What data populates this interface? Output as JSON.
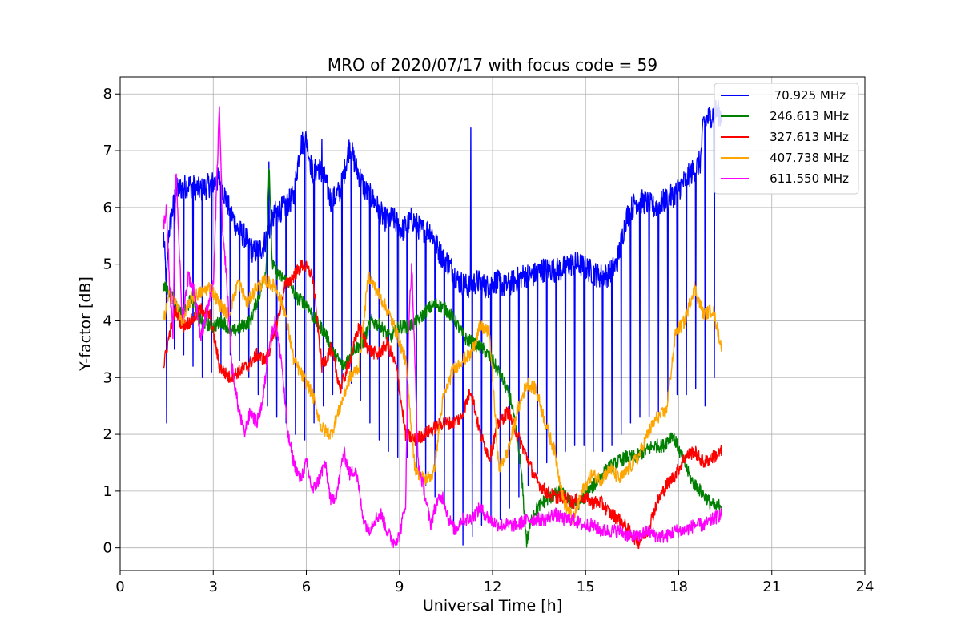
{
  "chart_data": {
    "type": "line",
    "title": "MRO of 2020/07/17 with focus code = 59",
    "xlabel": "Universal Time [h]",
    "ylabel": "Y-factor [dB]",
    "xlim": [
      0,
      24
    ],
    "ylim": [
      -0.4,
      8.3
    ],
    "xticks": [
      0,
      3,
      6,
      9,
      12,
      15,
      18,
      21,
      24
    ],
    "yticks": [
      0,
      1,
      2,
      3,
      4,
      5,
      6,
      7,
      8
    ],
    "grid": true,
    "legend_position": "top-right",
    "series": [
      {
        "name": "70.925 MHz",
        "color": "#0000ff",
        "x": [
          1.4,
          1.5,
          1.55,
          1.8,
          2.2,
          2.6,
          2.9,
          3.2,
          3.5,
          3.8,
          4.0,
          4.3,
          4.6,
          4.8,
          5.0,
          5.3,
          5.6,
          5.8,
          6.0,
          6.2,
          6.4,
          6.6,
          6.8,
          7.1,
          7.4,
          7.6,
          7.9,
          8.2,
          8.5,
          8.8,
          9.1,
          9.4,
          9.7,
          10.0,
          10.3,
          10.6,
          10.9,
          11.2,
          11.5,
          11.8,
          12.1,
          12.4,
          12.7,
          13.0,
          13.3,
          13.6,
          13.9,
          14.2,
          14.5,
          14.8,
          15.1,
          15.4,
          15.7,
          16.0,
          16.3,
          16.6,
          16.9,
          17.2,
          17.5,
          17.8,
          18.1,
          18.4,
          18.7,
          18.8,
          19.0,
          19.2,
          19.4
        ],
        "y": [
          5.5,
          4.6,
          5.5,
          6.3,
          6.4,
          6.3,
          6.4,
          6.5,
          6.0,
          5.6,
          5.5,
          5.2,
          5.3,
          5.6,
          5.9,
          6.0,
          6.2,
          7.1,
          7.2,
          6.6,
          6.7,
          6.5,
          6.1,
          6.3,
          7.1,
          6.7,
          6.3,
          6.1,
          5.8,
          5.8,
          5.6,
          5.8,
          5.6,
          5.6,
          5.2,
          5.0,
          4.7,
          4.6,
          4.7,
          4.6,
          4.7,
          4.6,
          4.7,
          4.8,
          4.8,
          4.9,
          4.9,
          4.9,
          5.0,
          5.0,
          4.9,
          4.8,
          4.8,
          5.0,
          5.8,
          6.1,
          6.1,
          6.0,
          6.1,
          6.2,
          6.4,
          6.6,
          6.8,
          7.5,
          7.6,
          7.7,
          7.6
        ],
        "dips": [
          [
            1.5,
            2.2
          ],
          [
            1.75,
            3.5
          ],
          [
            2.05,
            3.4
          ],
          [
            2.35,
            3.2
          ],
          [
            2.65,
            3.0
          ],
          [
            2.95,
            3.1
          ],
          [
            3.25,
            3.2
          ],
          [
            3.55,
            3.4
          ],
          [
            3.85,
            3.3
          ],
          [
            4.15,
            3.0
          ],
          [
            4.45,
            2.7
          ],
          [
            4.75,
            2.5
          ],
          [
            5.05,
            2.3
          ],
          [
            5.35,
            2.2
          ],
          [
            5.65,
            2.0
          ],
          [
            5.95,
            1.9
          ],
          [
            6.25,
            2.2
          ],
          [
            6.55,
            2.5
          ],
          [
            6.85,
            2.7
          ],
          [
            7.15,
            2.8
          ],
          [
            7.45,
            2.9
          ],
          [
            7.75,
            2.6
          ],
          [
            8.05,
            2.2
          ],
          [
            8.35,
            1.9
          ],
          [
            8.65,
            1.7
          ],
          [
            8.95,
            1.6
          ],
          [
            9.25,
            1.6
          ],
          [
            9.55,
            1.4
          ],
          [
            9.85,
            1.1
          ],
          [
            10.15,
            0.9
          ],
          [
            10.45,
            0.7
          ],
          [
            10.75,
            0.4
          ],
          [
            11.05,
            0.05
          ],
          [
            11.35,
            0.2
          ],
          [
            11.65,
            0.4
          ],
          [
            11.95,
            0.5
          ],
          [
            12.25,
            0.5
          ],
          [
            12.55,
            0.7
          ],
          [
            12.85,
            0.9
          ],
          [
            13.15,
            1.1
          ],
          [
            13.45,
            1.3
          ],
          [
            13.75,
            1.5
          ],
          [
            14.05,
            1.6
          ],
          [
            14.35,
            1.7
          ],
          [
            14.65,
            1.8
          ],
          [
            14.95,
            1.8
          ],
          [
            15.25,
            1.7
          ],
          [
            15.55,
            1.7
          ],
          [
            15.85,
            1.8
          ],
          [
            16.15,
            2.0
          ],
          [
            16.45,
            2.2
          ],
          [
            16.75,
            2.3
          ],
          [
            17.05,
            2.3
          ],
          [
            17.35,
            2.4
          ],
          [
            17.65,
            2.6
          ],
          [
            17.95,
            2.7
          ],
          [
            18.25,
            2.7
          ],
          [
            18.55,
            2.8
          ],
          [
            18.85,
            2.5
          ],
          [
            19.15,
            3.0
          ]
        ],
        "spikes": [
          [
            4.8,
            6.8
          ],
          [
            11.3,
            7.4
          ],
          [
            6.5,
            7.2
          ]
        ]
      },
      {
        "name": "246.613 MHz",
        "color": "#008000",
        "x": [
          1.4,
          1.6,
          1.8,
          2.0,
          2.3,
          2.6,
          3.0,
          3.3,
          3.6,
          3.9,
          4.2,
          4.5,
          4.7,
          4.8,
          4.9,
          5.1,
          5.4,
          5.7,
          6.0,
          6.3,
          6.6,
          6.9,
          7.2,
          7.5,
          7.8,
          8.1,
          8.4,
          8.7,
          9.0,
          9.3,
          9.6,
          9.9,
          10.2,
          10.5,
          10.8,
          11.1,
          11.4,
          11.7,
          12.0,
          12.3,
          12.6,
          12.9,
          13.1,
          13.3,
          13.6,
          13.9,
          14.2,
          14.5,
          14.8,
          15.1,
          15.4,
          15.7,
          16.0,
          16.3,
          16.6,
          16.9,
          17.2,
          17.5,
          17.8,
          18.1,
          18.4,
          18.7,
          19.0,
          19.2,
          19.4
        ],
        "y": [
          4.6,
          4.5,
          4.3,
          4.1,
          4.4,
          4.0,
          3.9,
          4.0,
          3.8,
          3.9,
          4.0,
          4.5,
          4.9,
          6.8,
          5.0,
          4.8,
          4.7,
          4.4,
          4.3,
          4.0,
          3.8,
          3.4,
          3.2,
          3.5,
          3.6,
          4.0,
          3.9,
          3.7,
          3.9,
          3.9,
          4.0,
          4.2,
          4.3,
          4.2,
          4.0,
          3.7,
          3.6,
          3.5,
          3.3,
          3.0,
          2.6,
          1.5,
          0.1,
          0.6,
          0.8,
          0.9,
          1.0,
          0.8,
          0.8,
          1.0,
          1.2,
          1.4,
          1.5,
          1.6,
          1.6,
          1.7,
          1.8,
          1.8,
          2.0,
          1.6,
          1.2,
          1.0,
          0.8,
          0.7,
          0.8
        ]
      },
      {
        "name": "327.613 MHz",
        "color": "#ff0000",
        "x": [
          1.4,
          1.6,
          1.8,
          2.0,
          2.3,
          2.6,
          2.9,
          3.2,
          3.5,
          3.8,
          4.1,
          4.4,
          4.7,
          5.0,
          5.3,
          5.6,
          5.9,
          6.2,
          6.5,
          6.8,
          7.1,
          7.4,
          7.7,
          8.0,
          8.3,
          8.6,
          8.9,
          9.2,
          9.5,
          9.8,
          10.1,
          10.4,
          10.7,
          11.0,
          11.3,
          11.6,
          11.9,
          12.2,
          12.5,
          12.8,
          13.1,
          13.4,
          13.7,
          14.0,
          14.3,
          14.6,
          14.9,
          15.2,
          15.5,
          15.8,
          16.1,
          16.4,
          16.7,
          17.0,
          17.3,
          17.6,
          17.9,
          18.2,
          18.5,
          18.8,
          19.1,
          19.4
        ],
        "y": [
          3.2,
          3.8,
          4.2,
          3.9,
          4.0,
          4.2,
          4.1,
          3.2,
          3.0,
          3.1,
          3.2,
          3.4,
          3.3,
          3.8,
          4.6,
          4.8,
          5.0,
          4.8,
          3.2,
          3.5,
          2.8,
          3.3,
          3.9,
          3.5,
          3.4,
          3.6,
          3.2,
          2.0,
          1.9,
          2.0,
          2.1,
          2.2,
          2.2,
          2.3,
          2.8,
          2.0,
          1.6,
          2.2,
          2.4,
          2.0,
          1.6,
          1.2,
          1.0,
          0.9,
          0.9,
          0.8,
          0.9,
          0.8,
          0.8,
          0.6,
          0.5,
          0.3,
          0.1,
          0.3,
          0.8,
          1.1,
          1.3,
          1.6,
          1.7,
          1.5,
          1.6,
          1.7
        ]
      },
      {
        "name": "407.738 MHz",
        "color": "#ffa500",
        "x": [
          1.4,
          1.6,
          1.8,
          2.0,
          2.3,
          2.6,
          2.9,
          3.2,
          3.5,
          3.8,
          4.1,
          4.4,
          4.7,
          5.0,
          5.3,
          5.6,
          5.9,
          6.2,
          6.5,
          6.8,
          7.1,
          7.4,
          7.7,
          8.0,
          8.3,
          8.6,
          8.9,
          9.2,
          9.5,
          9.8,
          10.1,
          10.4,
          10.7,
          11.0,
          11.3,
          11.6,
          11.9,
          12.2,
          12.5,
          12.8,
          13.1,
          13.4,
          13.7,
          14.0,
          14.3,
          14.6,
          14.9,
          15.2,
          15.5,
          15.8,
          16.1,
          16.4,
          16.7,
          17.0,
          17.3,
          17.6,
          17.9,
          18.2,
          18.5,
          18.8,
          19.1,
          19.4
        ],
        "y": [
          4.0,
          4.5,
          4.3,
          4.0,
          4.4,
          4.5,
          4.6,
          4.3,
          4.1,
          4.7,
          4.3,
          4.6,
          4.7,
          4.6,
          4.2,
          3.3,
          3.0,
          2.7,
          2.1,
          2.0,
          2.5,
          3.0,
          3.2,
          4.8,
          4.5,
          4.2,
          3.8,
          3.3,
          1.4,
          1.2,
          1.3,
          2.6,
          3.1,
          3.3,
          3.4,
          3.9,
          3.8,
          1.4,
          1.7,
          2.4,
          2.9,
          2.8,
          2.2,
          1.7,
          0.8,
          0.5,
          1.0,
          1.3,
          1.2,
          1.4,
          1.2,
          1.4,
          1.6,
          2.0,
          2.3,
          2.4,
          3.8,
          4.0,
          4.6,
          4.1,
          4.2,
          3.5
        ]
      },
      {
        "name": "611.550 MHz",
        "color": "#ff00ff",
        "x": [
          1.4,
          1.5,
          1.6,
          1.7,
          1.8,
          2.0,
          2.2,
          2.4,
          2.6,
          2.8,
          3.0,
          3.2,
          3.3,
          3.4,
          3.6,
          3.8,
          4.0,
          4.2,
          4.4,
          4.6,
          4.8,
          5.0,
          5.2,
          5.4,
          5.6,
          5.8,
          6.0,
          6.2,
          6.4,
          6.6,
          6.8,
          7.0,
          7.2,
          7.4,
          7.6,
          7.8,
          8.0,
          8.2,
          8.4,
          8.6,
          8.8,
          9.0,
          9.2,
          9.3,
          9.4,
          9.6,
          9.8,
          10.0,
          10.2,
          10.4,
          10.6,
          10.8,
          11.0,
          11.3,
          11.6,
          11.9,
          12.2,
          12.5,
          12.8,
          13.1,
          13.4,
          13.7,
          14.0,
          14.3,
          14.6,
          14.9,
          15.2,
          15.5,
          15.8,
          16.1,
          16.4,
          16.7,
          17.0,
          17.3,
          17.6,
          17.9,
          18.2,
          18.5,
          18.8,
          19.1,
          19.4
        ],
        "y": [
          5.7,
          6.0,
          4.5,
          3.8,
          6.7,
          4.0,
          4.8,
          4.5,
          3.7,
          4.2,
          4.6,
          7.8,
          5.5,
          5.0,
          3.2,
          2.5,
          2.0,
          2.4,
          2.2,
          2.6,
          3.6,
          4.0,
          3.3,
          2.0,
          1.5,
          1.2,
          1.5,
          1.0,
          1.2,
          1.5,
          0.8,
          1.0,
          1.7,
          1.3,
          1.4,
          0.6,
          0.3,
          0.5,
          0.6,
          0.3,
          0.1,
          0.2,
          0.8,
          4.0,
          5.0,
          1.5,
          1.0,
          0.4,
          0.8,
          0.9,
          0.5,
          0.3,
          0.5,
          0.5,
          0.7,
          0.5,
          0.4,
          0.4,
          0.4,
          0.5,
          0.5,
          0.5,
          0.6,
          0.5,
          0.5,
          0.4,
          0.4,
          0.3,
          0.3,
          0.3,
          0.2,
          0.2,
          0.3,
          0.2,
          0.2,
          0.3,
          0.3,
          0.4,
          0.4,
          0.5,
          0.6
        ]
      }
    ]
  }
}
